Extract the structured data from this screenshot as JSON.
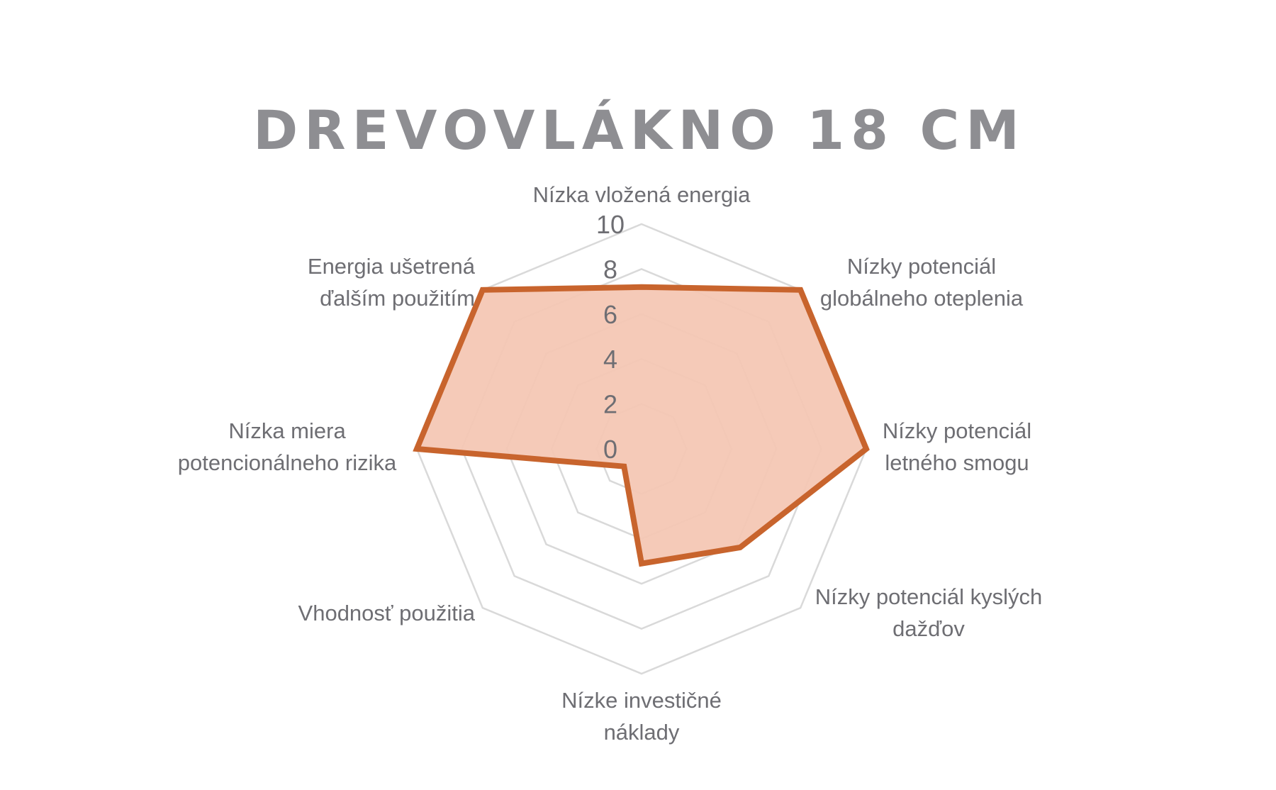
{
  "chart_data": {
    "type": "radar",
    "title": "DREVOVLÁKNO 18 CM",
    "categories": [
      [
        "Nízka vložená energia"
      ],
      [
        "Nízky potenciál",
        "globálneho oteplenia"
      ],
      [
        "Nízky potenciál",
        "letného smogu"
      ],
      [
        "Nízky potenciál kyslých",
        "dažďov"
      ],
      [
        "Nízke investičné",
        "náklady"
      ],
      [
        "Vhodnosť použitia"
      ],
      [
        "Nízka miera",
        "potencionálneho rizika"
      ],
      [
        "Energia ušetrená",
        "ďalším použitím"
      ]
    ],
    "series": [
      {
        "values": [
          7.2,
          10,
          10,
          6.2,
          5.1,
          1.1,
          10,
          10
        ],
        "color": "#c8642d",
        "fill": "#f4c7b4"
      }
    ],
    "rlim": [
      0,
      10
    ],
    "ticks": [
      "0",
      "2",
      "4",
      "6",
      "8",
      "10"
    ],
    "grid": true,
    "legend": "none"
  }
}
